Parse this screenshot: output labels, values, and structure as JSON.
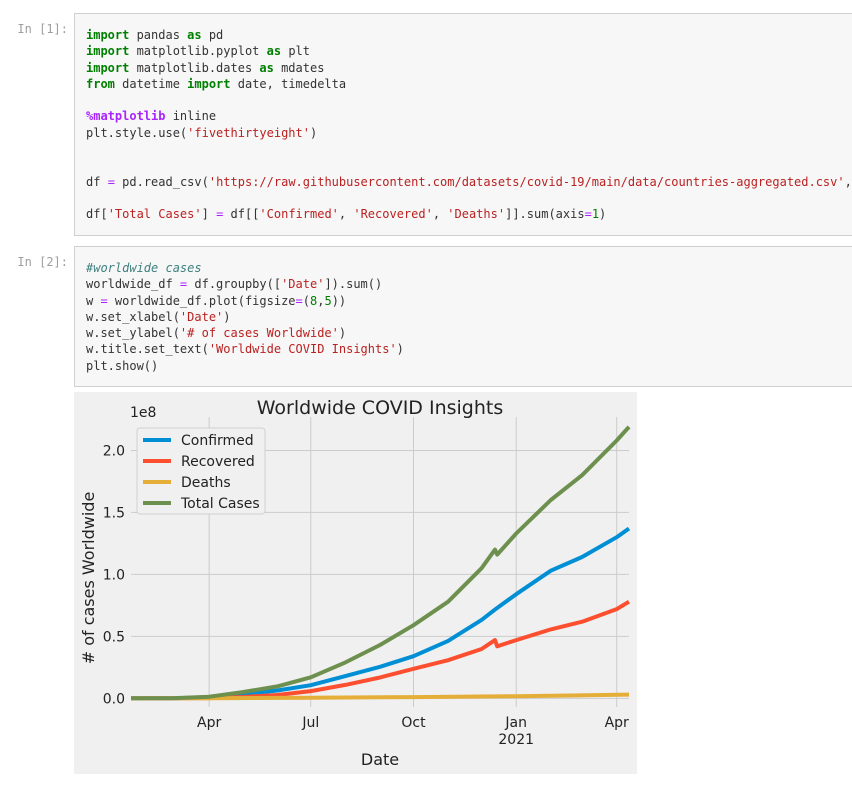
{
  "cells": [
    {
      "prompt": "In [1]:",
      "lines": [
        [
          {
            "t": "import",
            "c": "kw"
          },
          {
            "t": " pandas "
          },
          {
            "t": "as",
            "c": "kw"
          },
          {
            "t": " pd"
          }
        ],
        [
          {
            "t": "import",
            "c": "kw"
          },
          {
            "t": " matplotlib.pyplot "
          },
          {
            "t": "as",
            "c": "kw"
          },
          {
            "t": " plt"
          }
        ],
        [
          {
            "t": "import",
            "c": "kw"
          },
          {
            "t": " matplotlib.dates "
          },
          {
            "t": "as",
            "c": "kw"
          },
          {
            "t": " mdates"
          }
        ],
        [
          {
            "t": "from",
            "c": "kw"
          },
          {
            "t": " datetime "
          },
          {
            "t": "import",
            "c": "kw"
          },
          {
            "t": " date, timedelta"
          }
        ],
        [],
        [
          {
            "t": "%matplotlib",
            "c": "mag"
          },
          {
            "t": " inline"
          }
        ],
        [
          {
            "t": "plt.style.use("
          },
          {
            "t": "'fivethirtyeight'",
            "c": "str"
          },
          {
            "t": ")"
          }
        ],
        [],
        [],
        [
          {
            "t": "df "
          },
          {
            "t": "=",
            "c": "op"
          },
          {
            "t": " pd.read_csv("
          },
          {
            "t": "'https://raw.githubusercontent.com/datasets/covid-19/main/data/countries-aggregated.csv'",
            "c": "str"
          },
          {
            "t": ", p"
          }
        ],
        [],
        [
          {
            "t": "df["
          },
          {
            "t": "'Total Cases'",
            "c": "str"
          },
          {
            "t": "] "
          },
          {
            "t": "=",
            "c": "op"
          },
          {
            "t": " df[["
          },
          {
            "t": "'Confirmed'",
            "c": "str"
          },
          {
            "t": ", "
          },
          {
            "t": "'Recovered'",
            "c": "str"
          },
          {
            "t": ", "
          },
          {
            "t": "'Deaths'",
            "c": "str"
          },
          {
            "t": "]].sum(axis"
          },
          {
            "t": "=",
            "c": "op"
          },
          {
            "t": "1",
            "c": "num"
          },
          {
            "t": ")"
          }
        ]
      ]
    },
    {
      "prompt": "In [2]:",
      "lines": [
        [
          {
            "t": "#worldwide cases",
            "c": "com"
          }
        ],
        [
          {
            "t": "worldwide_df "
          },
          {
            "t": "=",
            "c": "op"
          },
          {
            "t": " df.groupby(["
          },
          {
            "t": "'Date'",
            "c": "str"
          },
          {
            "t": "]).sum()"
          }
        ],
        [
          {
            "t": "w "
          },
          {
            "t": "=",
            "c": "op"
          },
          {
            "t": " worldwide_df.plot(figsize"
          },
          {
            "t": "=",
            "c": "op"
          },
          {
            "t": "("
          },
          {
            "t": "8",
            "c": "num"
          },
          {
            "t": ","
          },
          {
            "t": "5",
            "c": "num"
          },
          {
            "t": "))"
          }
        ],
        [
          {
            "t": "w.set_xlabel("
          },
          {
            "t": "'Date'",
            "c": "str"
          },
          {
            "t": ")"
          }
        ],
        [
          {
            "t": "w.set_ylabel("
          },
          {
            "t": "'# of cases Worldwide'",
            "c": "str"
          },
          {
            "t": ")"
          }
        ],
        [
          {
            "t": "w.title.set_text("
          },
          {
            "t": "'Worldwide COVID Insights'",
            "c": "str"
          },
          {
            "t": ")"
          }
        ],
        [
          {
            "t": "plt.show()"
          }
        ]
      ]
    }
  ],
  "chart_data": {
    "type": "line",
    "title": "Worldwide COVID Insights",
    "xlabel": "Date",
    "ylabel": "# of cases Worldwide",
    "y_offset_label": "1e8",
    "y_scale": 100000000,
    "ylim": [
      -0.07,
      2.27
    ],
    "xlim": [
      "2020-01-22",
      "2021-04-12"
    ],
    "yticks": [
      0.0,
      0.5,
      1.0,
      1.5,
      2.0
    ],
    "ytick_labels": [
      "0.0",
      "0.5",
      "1.0",
      "1.5",
      "2.0"
    ],
    "xticks": [
      "2020-04-01",
      "2020-07-01",
      "2020-10-01",
      "2021-01-01",
      "2021-04-01"
    ],
    "xtick_labels": [
      "Apr",
      "Jul",
      "Oct",
      "Jan",
      "Apr"
    ],
    "xtick_sublabels": [
      "",
      "",
      "",
      "2021",
      ""
    ],
    "grid": true,
    "legend_position": "upper-left",
    "colors": {
      "Confirmed": "#008fd5",
      "Recovered": "#fc4f30",
      "Deaths": "#e5ae38",
      "Total Cases": "#6d904f",
      "background": "#f0f0f0",
      "grid": "#cbcbcb"
    },
    "series": [
      {
        "name": "Confirmed",
        "points": [
          [
            "2020-01-22",
            0.0
          ],
          [
            "2020-03-01",
            0.001
          ],
          [
            "2020-04-01",
            0.009
          ],
          [
            "2020-05-01",
            0.033
          ],
          [
            "2020-06-01",
            0.063
          ],
          [
            "2020-07-01",
            0.106
          ],
          [
            "2020-08-01",
            0.179
          ],
          [
            "2020-09-01",
            0.254
          ],
          [
            "2020-10-01",
            0.34
          ],
          [
            "2020-11-01",
            0.463
          ],
          [
            "2020-12-01",
            0.633
          ],
          [
            "2020-12-14",
            0.723
          ],
          [
            "2021-01-01",
            0.84
          ],
          [
            "2021-02-01",
            1.03
          ],
          [
            "2021-03-01",
            1.14
          ],
          [
            "2021-04-01",
            1.3
          ],
          [
            "2021-04-12",
            1.37
          ]
        ]
      },
      {
        "name": "Recovered",
        "points": [
          [
            "2020-01-22",
            0.0
          ],
          [
            "2020-03-01",
            0.0005
          ],
          [
            "2020-04-01",
            0.002
          ],
          [
            "2020-05-01",
            0.011
          ],
          [
            "2020-06-01",
            0.027
          ],
          [
            "2020-07-01",
            0.058
          ],
          [
            "2020-08-01",
            0.108
          ],
          [
            "2020-09-01",
            0.168
          ],
          [
            "2020-10-01",
            0.238
          ],
          [
            "2020-11-01",
            0.308
          ],
          [
            "2020-12-01",
            0.398
          ],
          [
            "2020-12-13",
            0.47
          ],
          [
            "2020-12-15",
            0.42
          ],
          [
            "2021-01-01",
            0.47
          ],
          [
            "2021-02-01",
            0.556
          ],
          [
            "2021-03-01",
            0.618
          ],
          [
            "2021-04-01",
            0.72
          ],
          [
            "2021-04-12",
            0.78
          ]
        ]
      },
      {
        "name": "Deaths",
        "points": [
          [
            "2020-01-22",
            0.0
          ],
          [
            "2020-04-01",
            0.0005
          ],
          [
            "2020-07-01",
            0.005
          ],
          [
            "2020-10-01",
            0.01
          ],
          [
            "2021-01-01",
            0.017
          ],
          [
            "2021-04-12",
            0.03
          ]
        ]
      },
      {
        "name": "Total Cases",
        "points": [
          [
            "2020-01-22",
            0.0
          ],
          [
            "2020-03-01",
            0.002
          ],
          [
            "2020-04-01",
            0.013
          ],
          [
            "2020-05-01",
            0.05
          ],
          [
            "2020-06-01",
            0.096
          ],
          [
            "2020-07-01",
            0.17
          ],
          [
            "2020-08-01",
            0.29
          ],
          [
            "2020-09-01",
            0.43
          ],
          [
            "2020-10-01",
            0.59
          ],
          [
            "2020-11-01",
            0.78
          ],
          [
            "2020-12-01",
            1.05
          ],
          [
            "2020-12-13",
            1.2
          ],
          [
            "2020-12-15",
            1.16
          ],
          [
            "2021-01-01",
            1.33
          ],
          [
            "2021-02-01",
            1.6
          ],
          [
            "2021-03-01",
            1.8
          ],
          [
            "2021-04-01",
            2.08
          ],
          [
            "2021-04-12",
            2.19
          ]
        ]
      }
    ]
  }
}
